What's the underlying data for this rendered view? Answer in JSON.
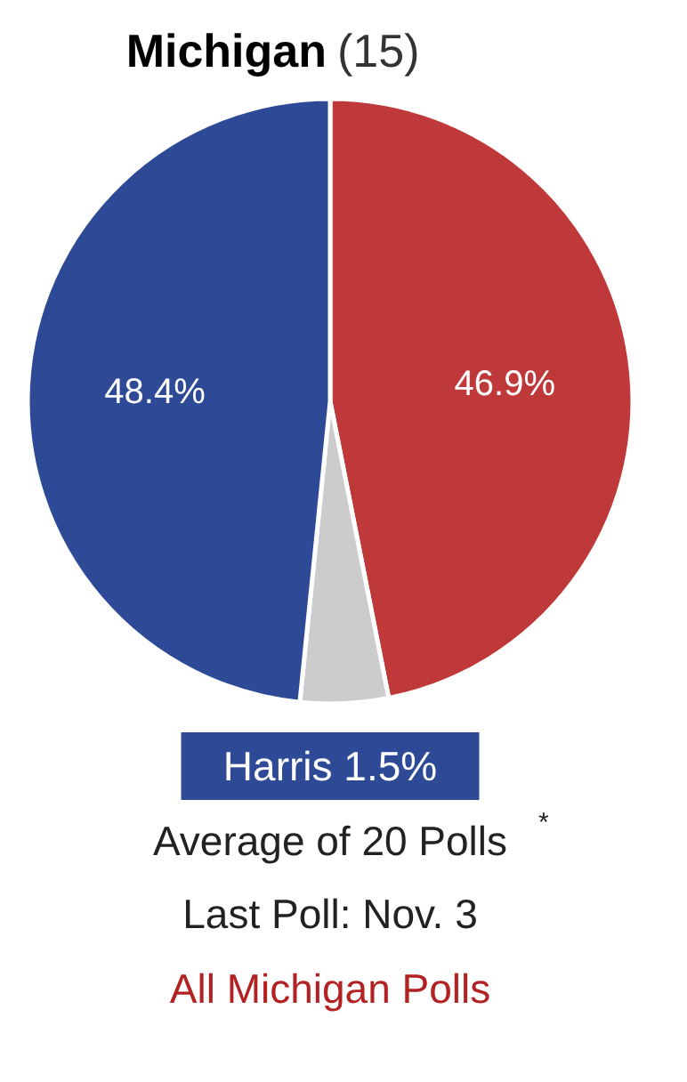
{
  "chart_data": {
    "type": "pie",
    "title": "Michigan (15)",
    "categories": [
      null,
      null,
      null
    ],
    "values": [
      46.9,
      4.7,
      48.4
    ],
    "colors": [
      "#c0393a",
      "#cccccc",
      "#2e4a96"
    ],
    "value_labels": [
      "46.9%",
      null,
      "48.4%"
    ],
    "annotations": [
      "Harris 1.5%",
      "Average of 20 Polls$^{*}$",
      "Last Poll: Nov. 3",
      "All Michigan Polls"
    ]
  }
}
